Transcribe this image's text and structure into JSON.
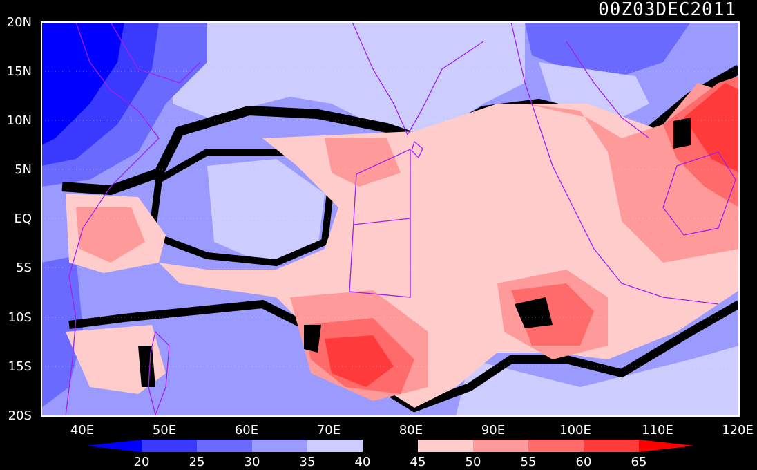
{
  "title": "00Z03DEC2011",
  "map": {
    "lat_labels": [
      "20N",
      "15N",
      "10N",
      "5N",
      "EQ",
      "5S",
      "10S",
      "15S",
      "20S"
    ],
    "lon_labels": [
      "40E",
      "50E",
      "60E",
      "70E",
      "80E",
      "90E",
      "100E",
      "110E",
      "120E"
    ],
    "lon_range": [
      35,
      120
    ],
    "lat_range": [
      -20,
      20
    ]
  },
  "colorbar": {
    "ticks": [
      "20",
      "25",
      "30",
      "35",
      "40",
      "45",
      "50",
      "55",
      "60",
      "65"
    ],
    "colors": [
      "#0000ff",
      "#3a3aff",
      "#6a6aff",
      "#9a9aff",
      "#ccccff",
      "#000000",
      "#ffcccc",
      "#ff9a9a",
      "#ff6a6a",
      "#ff3a3a",
      "#ff0000"
    ]
  },
  "palette": {
    "deep_blue": "#0000ff",
    "blue_1": "#3a3aff",
    "blue_2": "#6a6aff",
    "blue_3": "#9a9aff",
    "blue_4": "#ccccff",
    "neutral": "#000000",
    "pink_1": "#ffcccc",
    "pink_2": "#ff9a9a",
    "pink_3": "#ff6a6a",
    "pink_4": "#ff3a3a",
    "coastline": "#a020f0"
  }
}
